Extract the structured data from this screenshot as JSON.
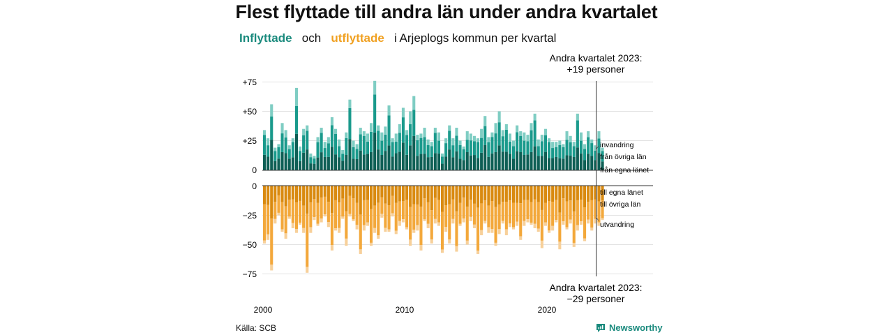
{
  "title": "Flest flyttade till andra län under andra kvartalet",
  "subtitle": {
    "inflyttade": "Inflyttade",
    "och": "och",
    "utflyttade": "utflyttade",
    "rest": "i Arjeplogs kommun per kvartal"
  },
  "source": "Källa: SCB",
  "brand": "Newsworthy",
  "colors": {
    "in_egna": "#0e5f55",
    "in_ovriga": "#1a9a8c",
    "in_invandring": "#7fcdc3",
    "out_egna": "#d98a10",
    "out_ovriga": "#f3a83b",
    "out_utvandring": "#f7d09a",
    "brand": "#1a8a7d"
  },
  "chart_data": {
    "type": "bar",
    "stacked": true,
    "x_start": "2000-Q1",
    "x_end": "2023-Q2",
    "x_ticks": [
      "2000",
      "2010",
      "2020"
    ],
    "y_ticks_upper": [
      "+75",
      "+50",
      "+25",
      "0"
    ],
    "y_ticks_lower": [
      "0",
      "−25",
      "−50",
      "−75"
    ],
    "grid": true,
    "annotation_top": {
      "line1": "Andra kvartalet 2023:",
      "line2": "+19 personer"
    },
    "annotation_bottom": {
      "line1": "Andra kvartalet 2023:",
      "line2": "−29 personer"
    },
    "series_labels": {
      "invandring": "invandring",
      "fran_ovriga_lan": "från övriga län",
      "fran_egna_lanet": "från egna länet",
      "till_egna_lanet": "till egna länet",
      "till_ovriga_lan": "till övriga län",
      "utvandring": "utvandring"
    },
    "inflyttade_total": [
      34,
      27,
      56,
      19,
      22,
      40,
      34,
      21,
      27,
      70,
      20,
      35,
      38,
      14,
      12,
      28,
      36,
      24,
      28,
      45,
      35,
      26,
      17,
      32,
      60,
      25,
      22,
      36,
      33,
      31,
      40,
      76,
      38,
      32,
      37,
      55,
      27,
      31,
      39,
      53,
      34,
      50,
      63,
      30,
      31,
      36,
      26,
      24,
      36,
      32,
      14,
      27,
      38,
      27,
      36,
      25,
      20,
      33,
      31,
      29,
      27,
      35,
      46,
      28,
      32,
      40,
      50,
      34,
      39,
      31,
      25,
      38,
      33,
      32,
      30,
      40,
      48,
      26,
      30,
      35,
      27,
      24,
      24,
      25,
      22,
      33,
      29,
      24,
      48,
      32,
      22,
      33,
      26,
      21,
      33,
      19
    ],
    "utflyttade_total": [
      49,
      46,
      72,
      32,
      25,
      39,
      45,
      28,
      36,
      40,
      33,
      40,
      74,
      40,
      29,
      34,
      31,
      26,
      35,
      55,
      38,
      40,
      28,
      51,
      26,
      30,
      37,
      58,
      38,
      34,
      51,
      40,
      45,
      27,
      39,
      39,
      26,
      41,
      34,
      31,
      37,
      51,
      40,
      38,
      55,
      30,
      36,
      49,
      32,
      34,
      57,
      39,
      49,
      32,
      56,
      34,
      31,
      50,
      30,
      36,
      58,
      42,
      32,
      40,
      40,
      51,
      41,
      32,
      42,
      35,
      37,
      34,
      46,
      34,
      31,
      33,
      36,
      39,
      53,
      34,
      40,
      38,
      31,
      54,
      33,
      37,
      32,
      52,
      38,
      33,
      47,
      32,
      38,
      32,
      34,
      29
    ]
  }
}
